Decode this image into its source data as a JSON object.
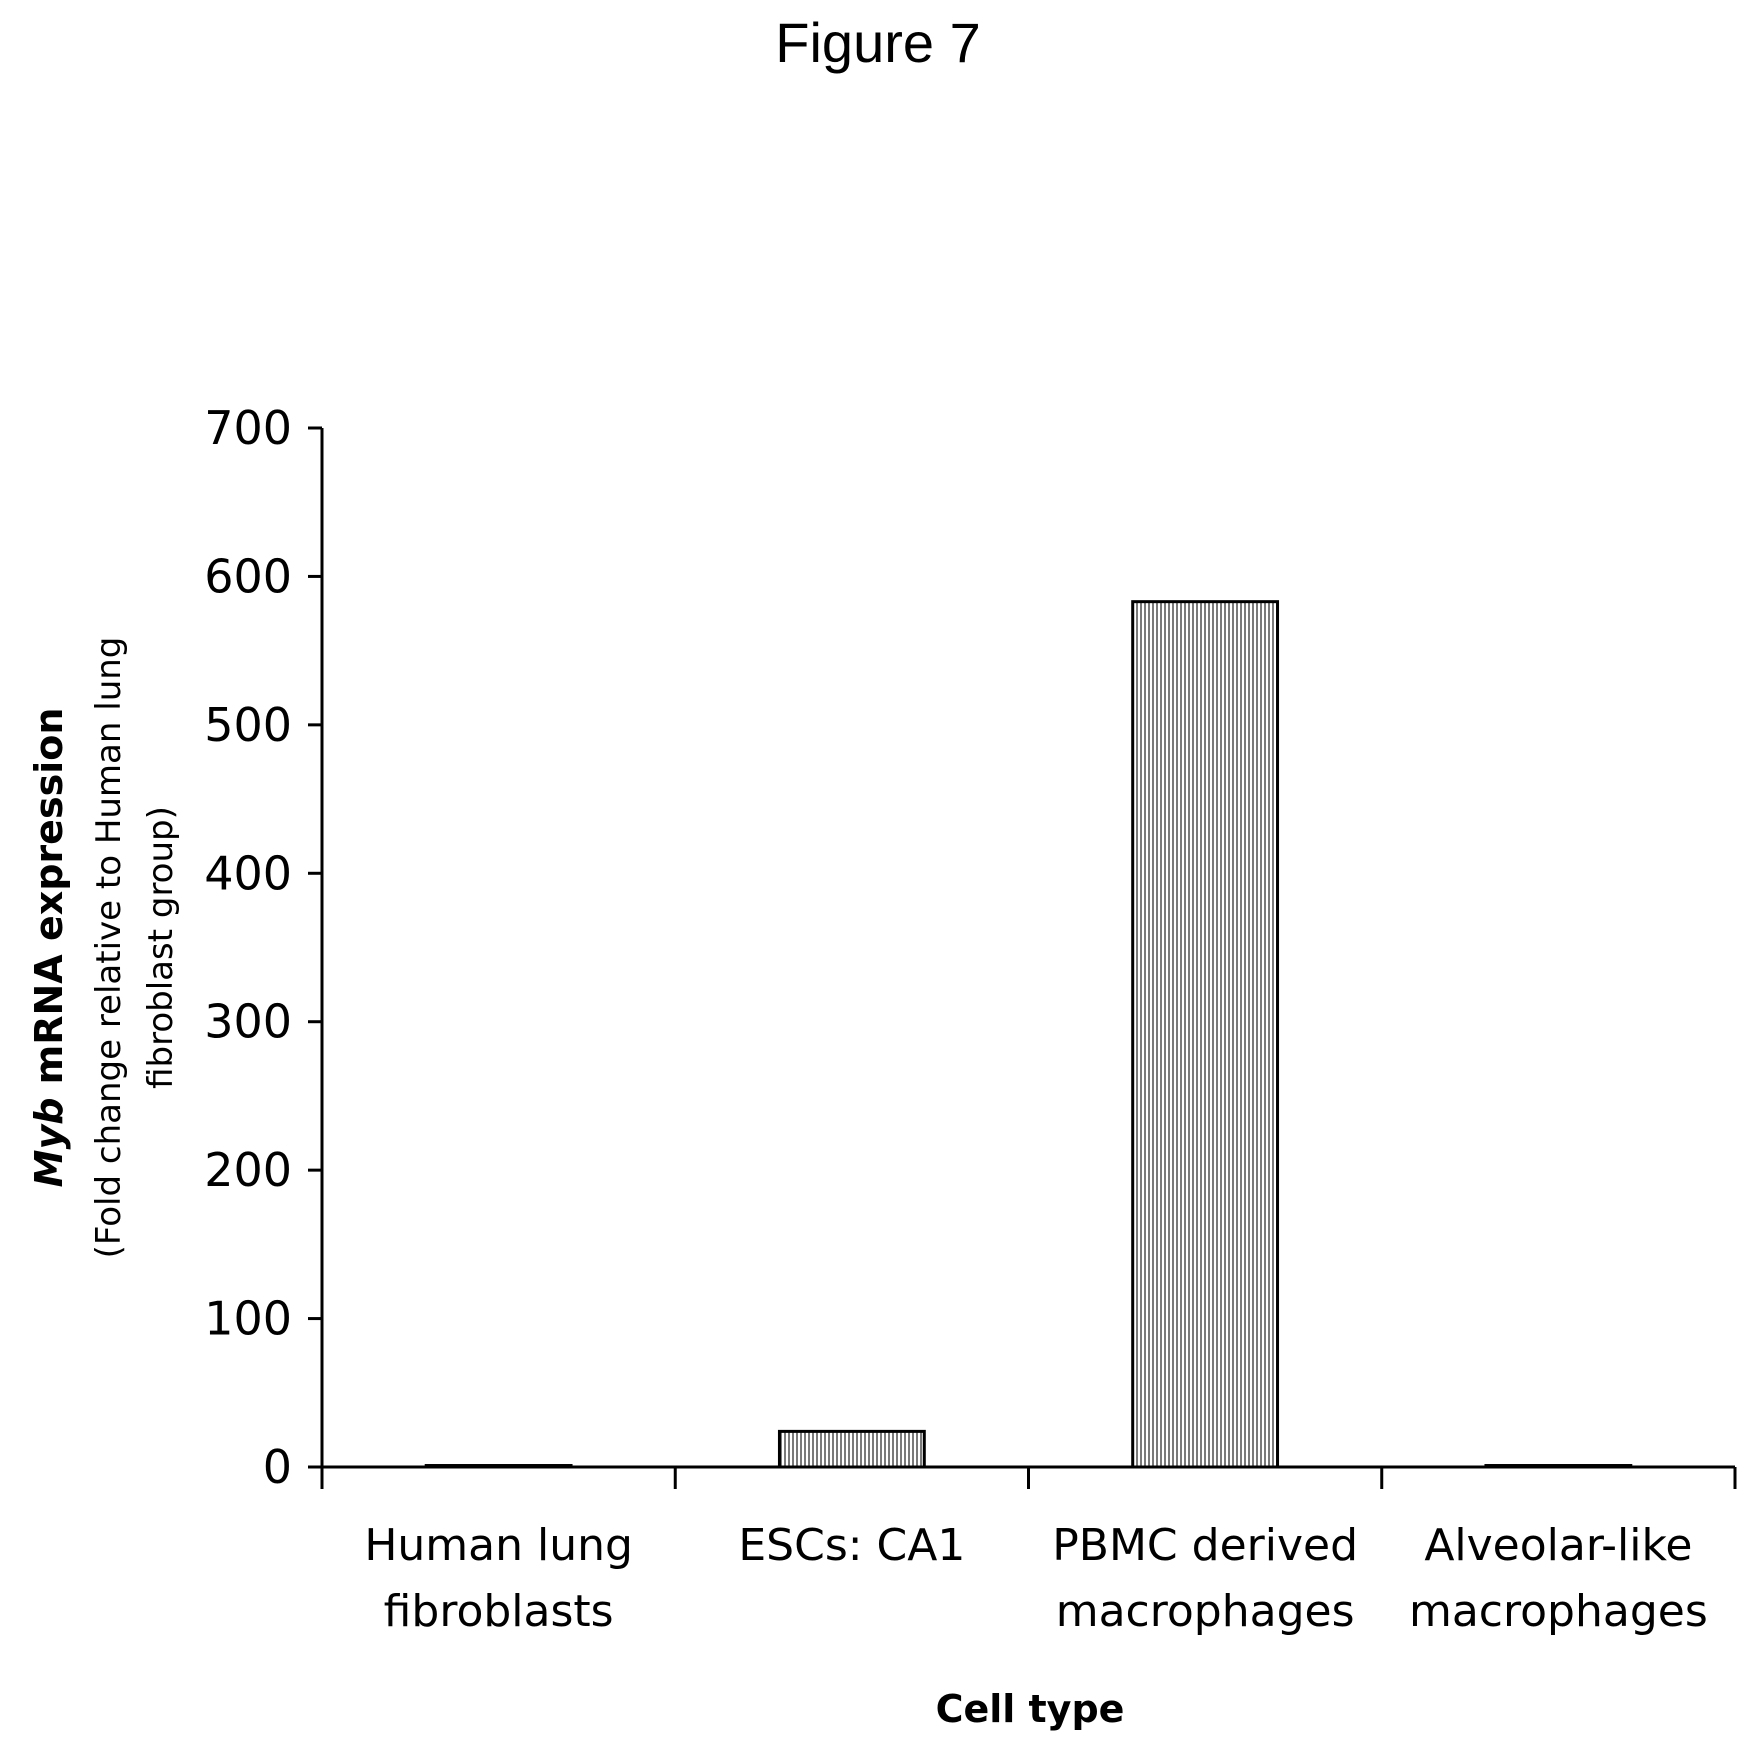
{
  "figure_label": "Figure 7",
  "chart_data": {
    "type": "bar",
    "title": "",
    "categories": [
      [
        "Human lung",
        "fibroblasts"
      ],
      [
        "ESCs: CA1"
      ],
      [
        "PBMC derived",
        "macrophages"
      ],
      [
        "Alveolar-like",
        "macrophages"
      ]
    ],
    "values": [
      1,
      24,
      583,
      1
    ],
    "xlabel": "Cell type",
    "ylabel": {
      "gene": "Myb",
      "main": " mRNA expression",
      "sub1": "(Fold change relative to Human lung",
      "sub2": "fibroblast group)"
    },
    "ylim": [
      0,
      700
    ],
    "yticks": [
      0,
      100,
      200,
      300,
      400,
      500,
      600,
      700
    ],
    "grid": false,
    "legend": "none",
    "bar_color": "#bdbdbd",
    "bar_edge_color": "#000000"
  }
}
